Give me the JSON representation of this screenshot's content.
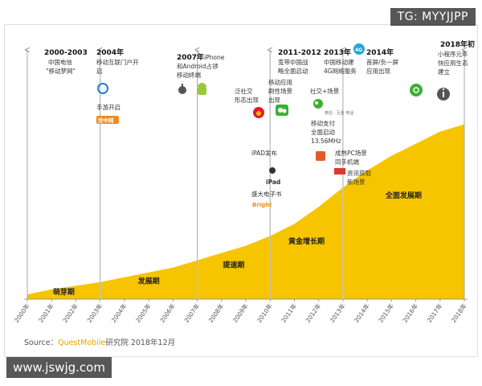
{
  "watermark_top": "TG: MYYJJPP",
  "watermark_bottom": "www.jswjg.com",
  "source": {
    "prefix": "Source：",
    "brand": "QuestMobile",
    "suffix": "研究院 2018年12月"
  },
  "chart_data": {
    "type": "area",
    "x": [
      "2000年",
      "2001年",
      "2002年",
      "2003年",
      "2004年",
      "2005年",
      "2006年",
      "2007年",
      "2008年",
      "2009年",
      "2010年",
      "2011年",
      "2012年",
      "2013年",
      "2014年",
      "2015年",
      "2016年",
      "2017年",
      "2018年"
    ],
    "values": [
      2,
      4,
      5.5,
      7,
      9,
      11,
      13,
      16,
      19,
      22,
      26,
      31,
      38,
      46,
      53,
      59,
      64,
      69,
      72
    ],
    "ylim": [
      0,
      100
    ],
    "color": "#f7c400",
    "phases": [
      {
        "label": "萌芽期",
        "from": "2000年",
        "to": "2003年"
      },
      {
        "label": "发展期",
        "from": "2003年",
        "to": "2007年"
      },
      {
        "label": "提速期",
        "from": "2007年",
        "to": "2010年"
      },
      {
        "label": "黄金增长期",
        "from": "2010年",
        "to": "2013年"
      },
      {
        "label": "全面发展期",
        "from": "2013年",
        "to": "2018年"
      }
    ],
    "milestones": [
      {
        "title": "2000-2003",
        "lines": [
          "中国电信",
          "\"移动梦网\""
        ]
      },
      {
        "title": "2004年",
        "lines": [
          "移动互联门户开",
          "启"
        ]
      },
      {
        "title": "2007年",
        "suffix": "iPhone",
        "lines": [
          "和Android占领",
          "移动终端"
        ]
      },
      {
        "title": "2011-2012",
        "lines": [
          "宽带中国战",
          "略全面启动"
        ]
      },
      {
        "title": "2013年",
        "lines": [
          "中国移动建",
          "4G网络服务"
        ]
      },
      {
        "title": "2014年",
        "lines": [
          "首屏/负一屏",
          "应用出现"
        ]
      },
      {
        "title": "2018年初",
        "lines": [
          "小程序元年",
          "快应用生态",
          "建立"
        ]
      }
    ],
    "annotations": [
      {
        "lines": [
          "手游开启"
        ]
      },
      {
        "lines": [
          "泛社交",
          "形态出现"
        ]
      },
      {
        "lines": [
          "移动应用",
          "刷性场景",
          "出现"
        ]
      },
      {
        "lines": [
          "社交+场景"
        ]
      },
      {
        "lines": [
          "移动支付",
          "全面启动",
          "13.56MHz"
        ]
      },
      {
        "lines": [
          "iPAD发布"
        ]
      },
      {
        "lines": [
          "iPad"
        ]
      },
      {
        "lines": [
          "盛大电子书"
        ]
      },
      {
        "lines": [
          "成熟PC场景",
          "同手机端"
        ]
      },
      {
        "lines": [
          "资讯获取",
          "新场景"
        ]
      }
    ],
    "logo_text": {
      "kongzhong": "空中网",
      "bright": "Bright",
      "weixin": "微信",
      "weibo": "微博",
      "weixin_small": "微信 · 互金 电话"
    },
    "icons": [
      "weibo-icon",
      "wechat-icon",
      "apple-icon",
      "android-icon",
      "4g-icon",
      "circle-app-icon",
      "info-icon",
      "news-icon",
      "toutiao-icon"
    ]
  }
}
